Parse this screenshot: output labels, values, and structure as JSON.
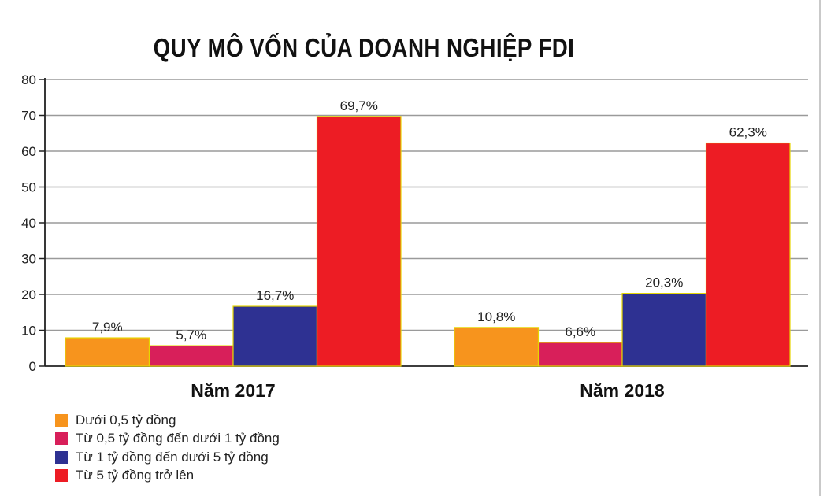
{
  "chart_data": {
    "type": "bar",
    "title": "QUY MÔ VỐN CỦA DOANH NGHIỆP FDI",
    "xlabel": "",
    "ylabel": "",
    "ylim": [
      0,
      80
    ],
    "yticks": [
      "0",
      "10",
      "20",
      "30",
      "40",
      "50",
      "60",
      "70",
      "80"
    ],
    "grid": true,
    "legend_position": "bottom-left",
    "categories": [
      "Năm 2017",
      "Năm 2018"
    ],
    "series": [
      {
        "name": "Dưới 0,5 tỷ đồng",
        "values": [
          7.9,
          10.8
        ],
        "labels": [
          "7,9%",
          "10,8%"
        ],
        "color": "#F7941D"
      },
      {
        "name": "Từ 0,5 tỷ đồng đến dưới 1 tỷ đồng",
        "values": [
          5.7,
          6.6
        ],
        "labels": [
          "5,7%",
          "6,6%"
        ],
        "color": "#D81F5A"
      },
      {
        "name": "Từ 1 tỷ đồng đến dưới 5 tỷ đồng",
        "values": [
          16.7,
          20.3
        ],
        "labels": [
          "16,7%",
          "20,3%"
        ],
        "color": "#2E3192"
      },
      {
        "name": "Từ 5 tỷ đồng trở lên",
        "values": [
          69.7,
          62.3
        ],
        "labels": [
          "69,7%",
          "62,3%"
        ],
        "color": "#ED1C24"
      }
    ]
  }
}
